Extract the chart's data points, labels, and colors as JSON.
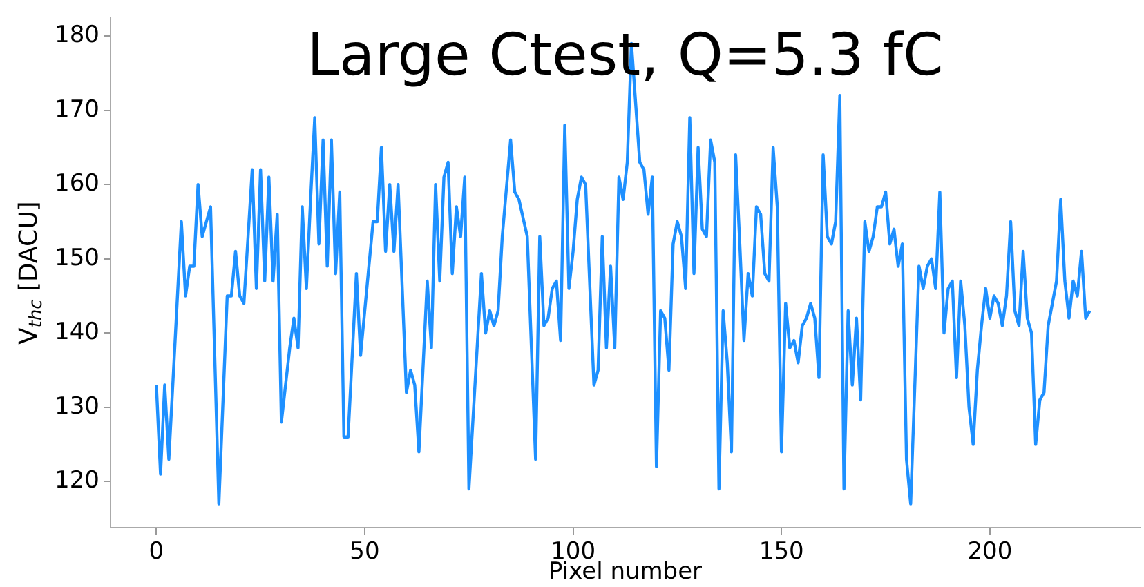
{
  "chart_data": {
    "type": "line",
    "title": "Large Ctest, Q=5.3 fC",
    "xlabel": "Pixel number",
    "ylabel": "V$_{thc}$ [DACU]",
    "xlim": [
      -11,
      236
    ],
    "ylim": [
      113.8,
      182.4
    ],
    "xticks": [
      0,
      50,
      100,
      150,
      200
    ],
    "yticks": [
      120,
      130,
      140,
      150,
      160,
      170,
      180
    ],
    "grid": false,
    "legend": false,
    "marker": "none",
    "line_style": "solid",
    "series": [
      {
        "color": "#1e90ff",
        "x": [
          0,
          1,
          2,
          3,
          6,
          7,
          8,
          9,
          10,
          11,
          13,
          15,
          17,
          18,
          19,
          20,
          21,
          23,
          24,
          25,
          26,
          27,
          28,
          29,
          30,
          32,
          33,
          34,
          35,
          36,
          37,
          38,
          39,
          40,
          41,
          42,
          43,
          44,
          45,
          46,
          48,
          49,
          52,
          53,
          54,
          55,
          56,
          57,
          58,
          60,
          61,
          62,
          63,
          65,
          66,
          67,
          68,
          69,
          70,
          71,
          72,
          73,
          74,
          75,
          78,
          79,
          80,
          81,
          82,
          83,
          85,
          86,
          87,
          89,
          91,
          92,
          93,
          94,
          95,
          96,
          97,
          98,
          99,
          100,
          101,
          102,
          103,
          105,
          106,
          107,
          108,
          109,
          110,
          111,
          112,
          113,
          114,
          116,
          117,
          118,
          119,
          120,
          121,
          122,
          123,
          124,
          125,
          126,
          127,
          128,
          129,
          130,
          131,
          132,
          133,
          134,
          135,
          136,
          137,
          138,
          139,
          140,
          141,
          142,
          143,
          144,
          145,
          146,
          147,
          148,
          149,
          150,
          151,
          152,
          153,
          154,
          155,
          156,
          157,
          158,
          159,
          160,
          161,
          162,
          163,
          164,
          165,
          166,
          167,
          168,
          169,
          170,
          171,
          172,
          173,
          174,
          175,
          176,
          177,
          178,
          179,
          180,
          181,
          183,
          184,
          185,
          186,
          187,
          188,
          189,
          190,
          191,
          192,
          193,
          194,
          195,
          196,
          197,
          198,
          199,
          200,
          201,
          202,
          203,
          204,
          205,
          206,
          207,
          208,
          209,
          210,
          211,
          212,
          213,
          214,
          215,
          216,
          217,
          218,
          219,
          220,
          221,
          222,
          223,
          224
        ],
        "values": [
          133,
          121,
          133,
          123,
          155,
          145,
          149,
          149,
          160,
          153,
          157,
          117,
          145,
          145,
          151,
          145,
          144,
          162,
          146,
          162,
          147,
          161,
          147,
          156,
          128,
          138,
          142,
          138,
          157,
          146,
          158,
          169,
          152,
          166,
          149,
          166,
          148,
          159,
          126,
          126,
          148,
          137,
          155,
          155,
          165,
          151,
          160,
          151,
          160,
          132,
          135,
          133,
          124,
          147,
          138,
          160,
          147,
          161,
          163,
          148,
          157,
          153,
          161,
          119,
          148,
          140,
          143,
          141,
          143,
          153,
          166,
          159,
          158,
          153,
          123,
          153,
          141,
          142,
          146,
          147,
          139,
          168,
          146,
          151,
          158,
          161,
          160,
          133,
          135,
          153,
          138,
          149,
          138,
          161,
          158,
          163,
          179,
          163,
          162,
          156,
          161,
          122,
          143,
          142,
          135,
          152,
          155,
          153,
          146,
          169,
          148,
          165,
          154,
          153,
          166,
          163,
          119,
          143,
          136,
          124,
          164,
          152,
          139,
          148,
          145,
          157,
          156,
          148,
          147,
          165,
          157,
          124,
          144,
          138,
          139,
          136,
          141,
          142,
          144,
          142,
          134,
          164,
          153,
          152,
          155,
          172,
          119,
          143,
          133,
          142,
          131,
          155,
          151,
          153,
          157,
          157,
          159,
          152,
          154,
          149,
          152,
          123,
          117,
          149,
          146,
          149,
          150,
          146,
          159,
          140,
          146,
          147,
          134,
          147,
          141,
          130,
          125,
          135,
          141,
          146,
          142,
          145,
          144,
          141,
          145,
          155,
          143,
          141,
          151,
          142,
          140,
          125,
          131,
          132,
          141,
          144,
          147,
          158,
          147,
          142,
          147,
          145,
          151,
          142,
          143
        ]
      }
    ]
  }
}
